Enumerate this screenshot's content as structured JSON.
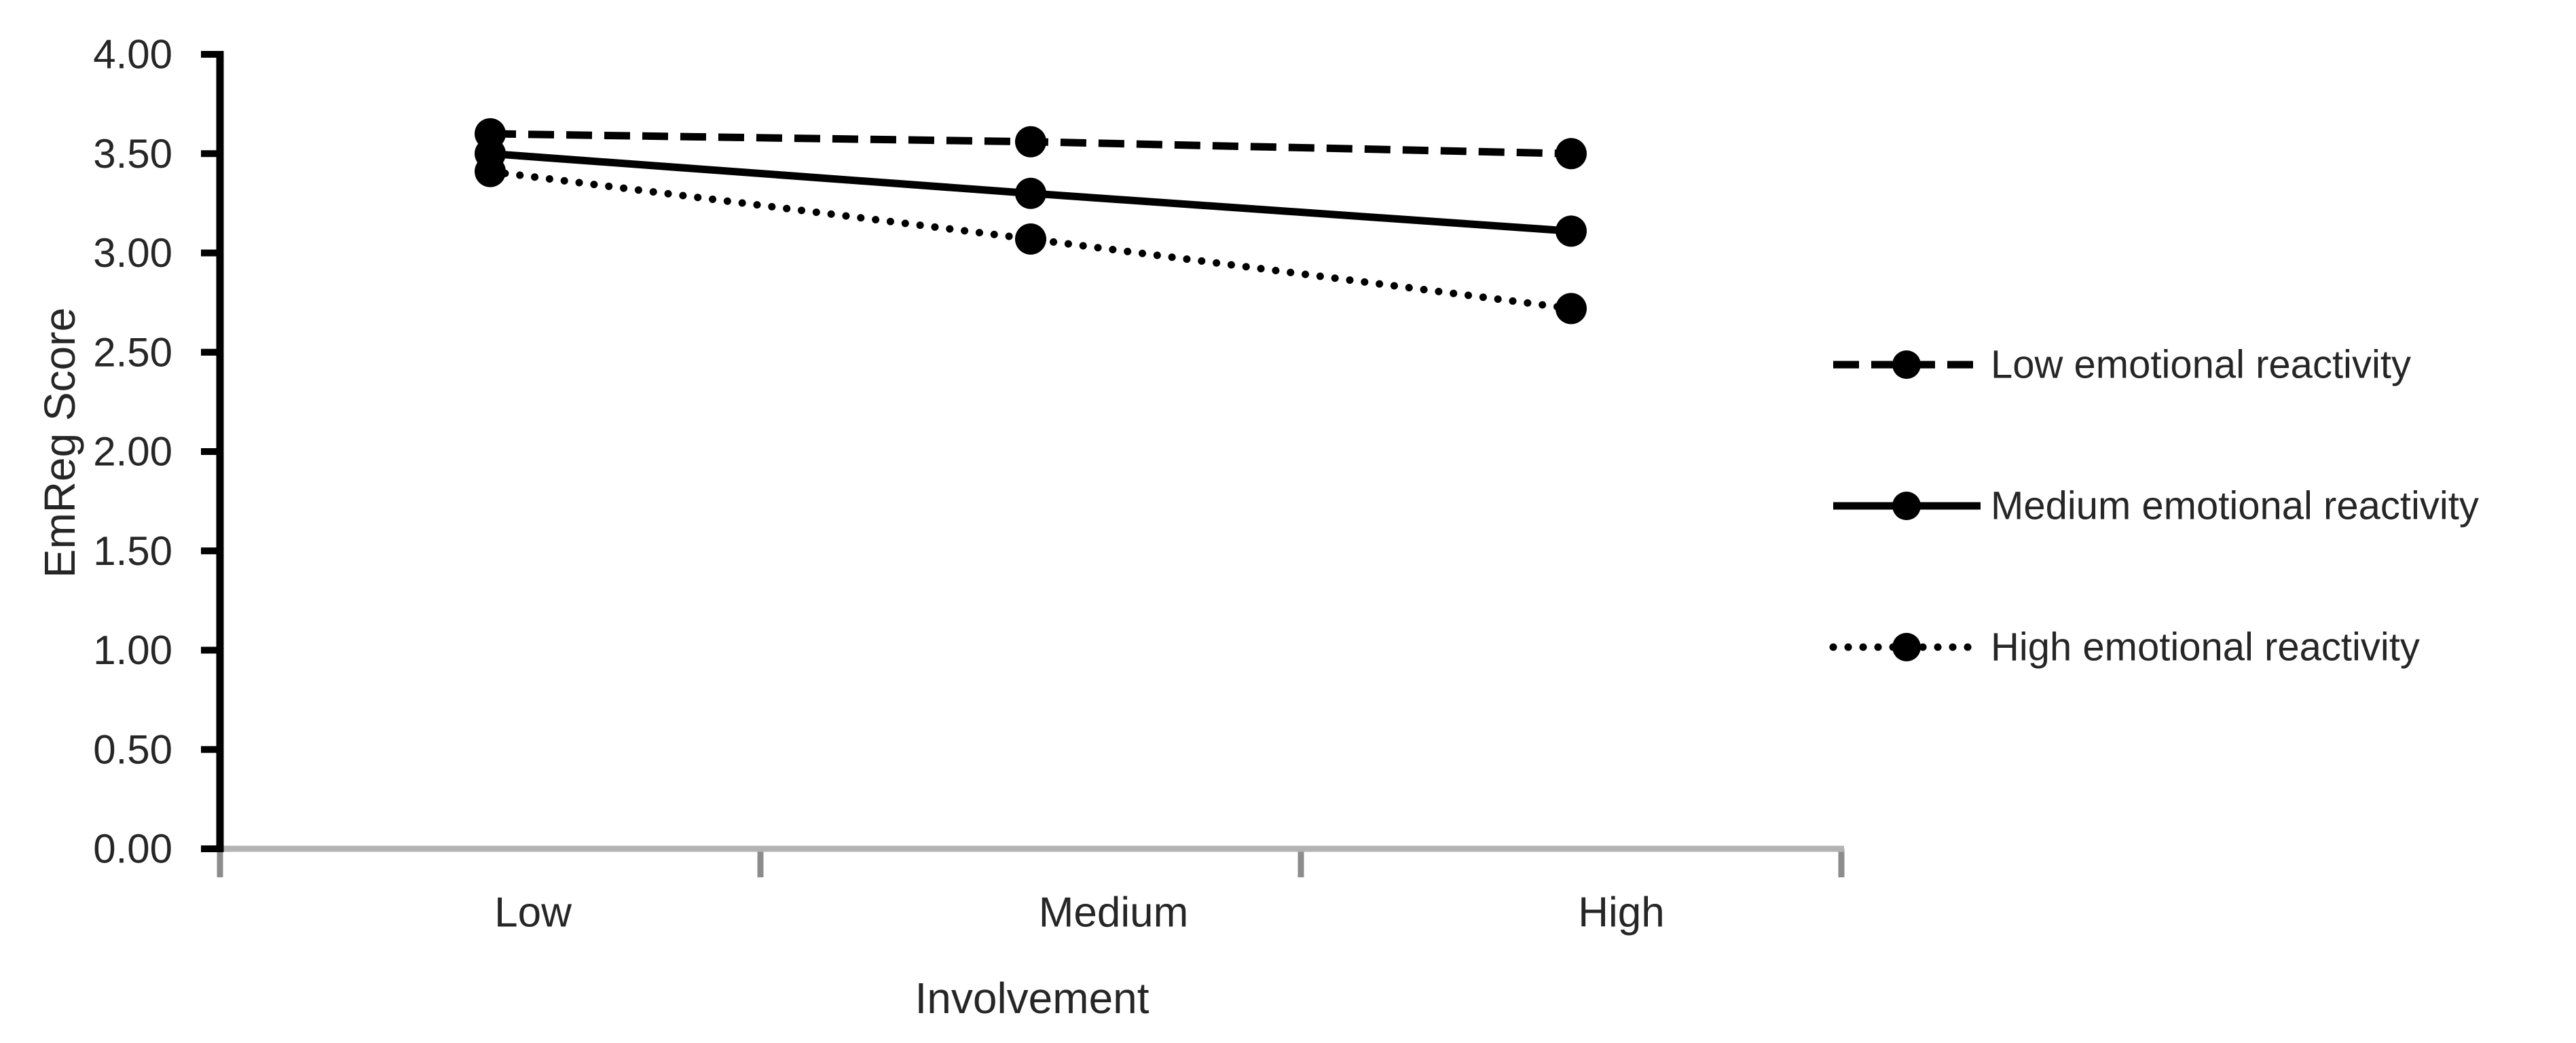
{
  "chart_data": {
    "type": "line",
    "title": "",
    "xlabel": "Involvement",
    "ylabel": "EmReg Score",
    "categories": [
      "Low",
      "Medium",
      "High"
    ],
    "series": [
      {
        "name": "Low emotional reactivity",
        "line_style": "dashed",
        "marker": "circle",
        "color": "#000000",
        "values": [
          3.6,
          3.56,
          3.5
        ]
      },
      {
        "name": "Medium emotional reactivity",
        "line_style": "solid",
        "marker": "circle",
        "color": "#000000",
        "values": [
          3.5,
          3.3,
          3.11
        ]
      },
      {
        "name": "High emotional reactivity",
        "line_style": "dotted",
        "marker": "circle",
        "color": "#000000",
        "values": [
          3.41,
          3.07,
          2.72
        ]
      }
    ],
    "y_axis": {
      "min": 0.0,
      "max": 4.0,
      "step": 0.5,
      "tick_labels": [
        "0.00",
        "0.50",
        "1.00",
        "1.50",
        "2.00",
        "2.50",
        "3.00",
        "3.50",
        "4.00"
      ]
    },
    "legend_position": "right",
    "grid": false
  },
  "colors": {
    "series": "#000000",
    "y_axis_line": "#000000",
    "x_axis_line": "#b3b3b3",
    "x_axis_tick": "#8c8c8c",
    "text": "#262626"
  }
}
